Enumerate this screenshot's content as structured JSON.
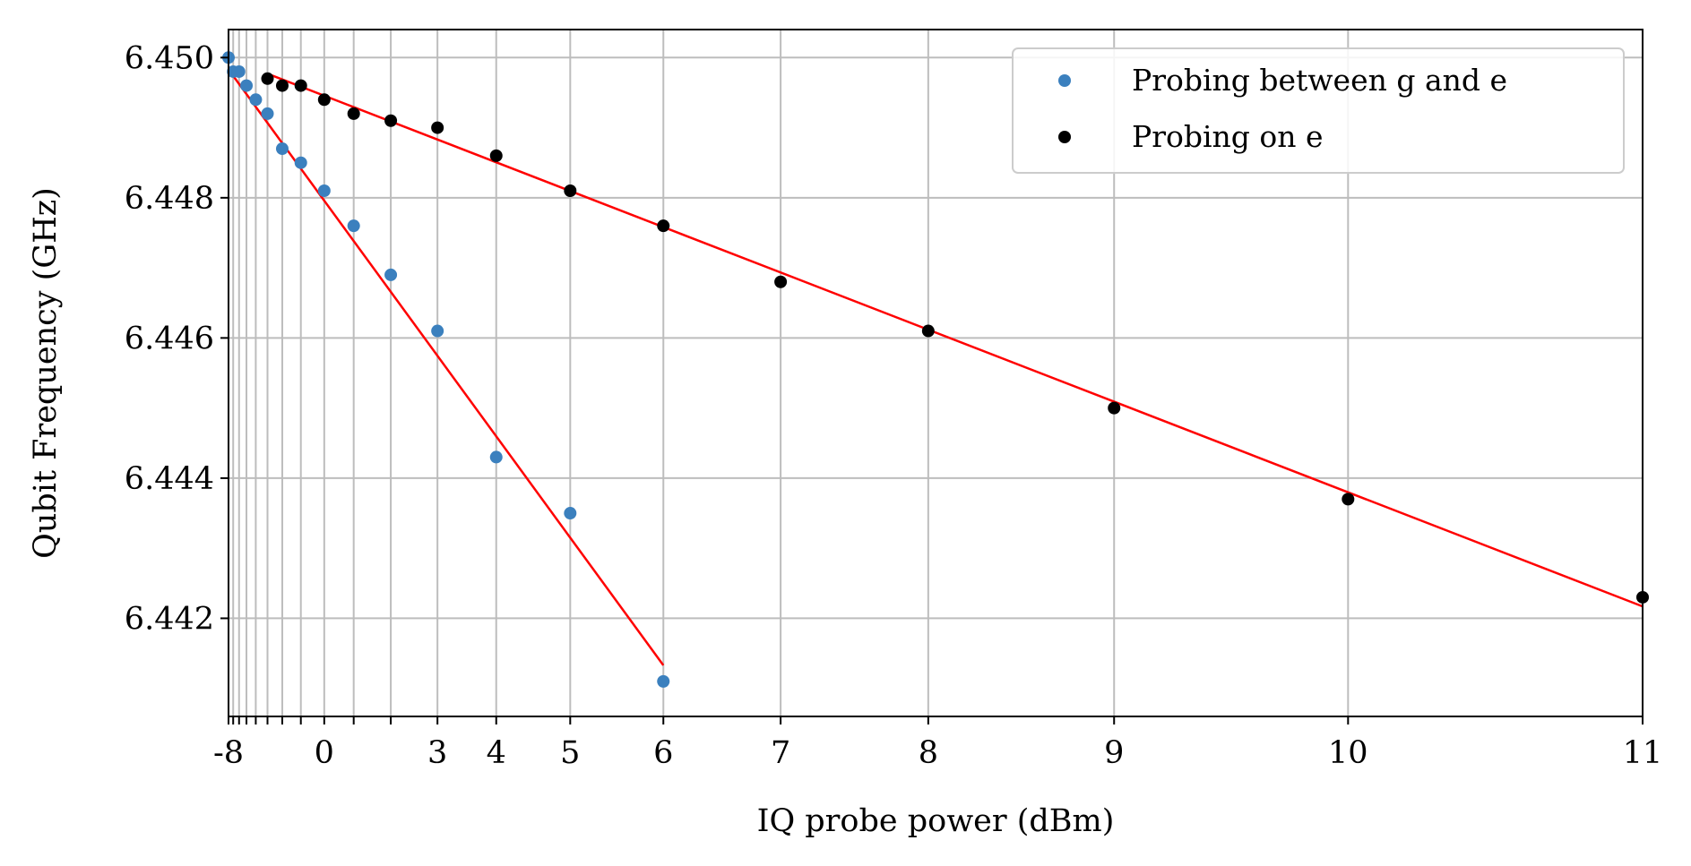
{
  "chart_data": {
    "type": "scatter",
    "title": "",
    "xlabel": "IQ probe power (dBm)",
    "ylabel": "Qubit Frequency (GHz)",
    "x_scale": "power (linear in mW, labeled in dBm)",
    "xlim": [
      -8,
      11
    ],
    "ylim": [
      6.4406,
      6.4504
    ],
    "x_tick_values": [
      -8,
      -7,
      -6,
      -5,
      -4,
      -3,
      -2,
      -1,
      0,
      1,
      2,
      3,
      4,
      5,
      6,
      7,
      8,
      9,
      10,
      11
    ],
    "x_tick_labels": [
      "-8",
      "",
      "",
      "",
      "",
      "",
      "",
      "",
      "0",
      "",
      "",
      "3",
      "4",
      "5",
      "6",
      "7",
      "8",
      "9",
      "10",
      "11"
    ],
    "y_ticks": [
      6.442,
      6.444,
      6.446,
      6.448,
      6.45
    ],
    "y_tick_labels": [
      "6.442",
      "6.444",
      "6.446",
      "6.448",
      "6.450"
    ],
    "grid": true,
    "legend_position": "top-right",
    "series": [
      {
        "name": "Probing between g and e",
        "color": "#3b80be",
        "marker": "circle",
        "x": [
          -8,
          -7,
          -6,
          -5,
          -4,
          -3,
          -2,
          -1,
          0,
          1,
          2,
          3,
          4,
          5,
          6
        ],
        "y": [
          6.45,
          6.4498,
          6.4498,
          6.4496,
          6.4494,
          6.4492,
          6.4487,
          6.4485,
          6.4481,
          6.4476,
          6.4469,
          6.4461,
          6.4443,
          6.4435,
          6.4411
        ]
      },
      {
        "name": "Probing on e",
        "color": "#000000",
        "marker": "circle",
        "x": [
          -3,
          -2,
          -1,
          0,
          1,
          2,
          3,
          4,
          5,
          6,
          7,
          8,
          9,
          10,
          11
        ],
        "y": [
          6.4497,
          6.4496,
          6.4496,
          6.4494,
          6.4492,
          6.4491,
          6.449,
          6.4486,
          6.4481,
          6.4476,
          6.4468,
          6.4461,
          6.445,
          6.4437,
          6.4423
        ]
      }
    ],
    "fits": [
      {
        "color": "#ff0000",
        "x": [
          -8,
          6
        ],
        "y": [
          6.44983,
          6.44133
        ]
      },
      {
        "color": "#ff0000",
        "x": [
          -3,
          11
        ],
        "y": [
          6.44977,
          6.44217
        ]
      }
    ]
  }
}
